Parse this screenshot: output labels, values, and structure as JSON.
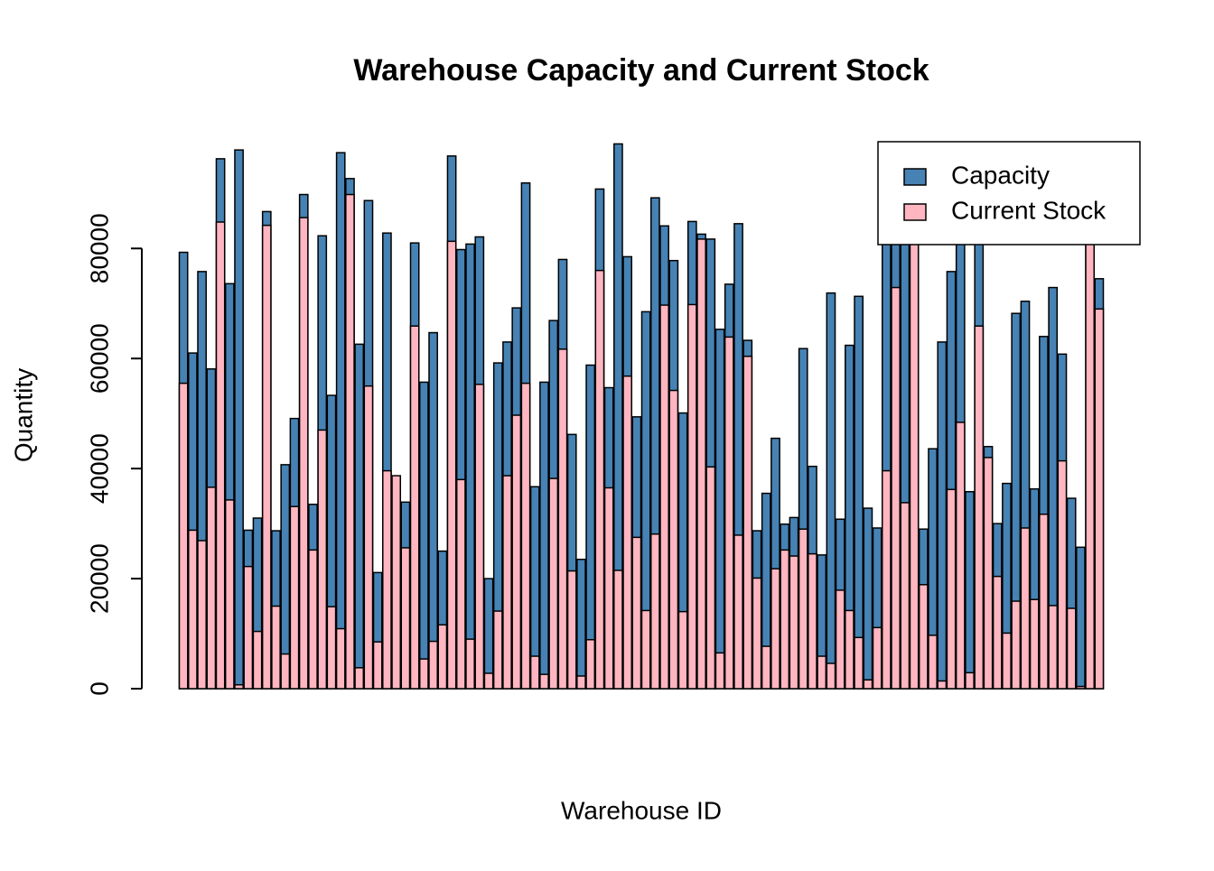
{
  "chart_data": {
    "type": "overlay-bar",
    "title": "Warehouse Capacity and Current Stock",
    "x_label": "Warehouse ID",
    "y_label": "Quantity",
    "ylim": [
      0,
      99400
    ],
    "yticks": [
      0,
      20000,
      40000,
      60000,
      80000
    ],
    "legend": "topright",
    "series": [
      {
        "name": "Capacity",
        "color": "#4682b4",
        "values": [
          79300,
          61000,
          75800,
          58100,
          96300,
          73600,
          97900,
          28800,
          31000,
          86700,
          28700,
          40700,
          49100,
          89800,
          33500,
          82300,
          53300,
          97400,
          92700,
          62600,
          88700,
          21100,
          82800,
          38500,
          33900,
          81000,
          55700,
          64700,
          25000,
          96800,
          79800,
          80800,
          82100,
          20000,
          59200,
          63000,
          69200,
          91900,
          36700,
          55700,
          66900,
          78000,
          46200,
          23500,
          58800,
          90800,
          54700,
          99000,
          78500,
          49400,
          68500,
          89200,
          84100,
          77800,
          50100,
          84900,
          82600,
          81700,
          65300,
          73500,
          84500,
          63300,
          28700,
          35500,
          45500,
          29900,
          31100,
          61800,
          40400,
          24300,
          71900,
          30800,
          62400,
          71300,
          32800,
          29200,
          90000,
          88000,
          86000,
          90000,
          29000,
          43600,
          63000,
          75800,
          88000,
          35800,
          86000,
          44000,
          30000,
          37300,
          68200,
          70400,
          36300,
          64000,
          72900,
          60800,
          34600,
          25700,
          85000,
          74500
        ]
      },
      {
        "name": "Current Stock",
        "color": "#ffb6c1",
        "values": [
          55500,
          28800,
          26900,
          36600,
          84800,
          34300,
          700,
          22200,
          10400,
          84200,
          15000,
          6300,
          33100,
          85600,
          25200,
          47000,
          14900,
          10900,
          89800,
          3800,
          55000,
          8500,
          39600,
          38700,
          25600,
          65900,
          5400,
          8600,
          11600,
          81300,
          38000,
          9000,
          55300,
          2800,
          14100,
          38700,
          49700,
          55500,
          5900,
          2600,
          38200,
          61700,
          21400,
          2300,
          8900,
          76000,
          36500,
          21500,
          56800,
          27500,
          14200,
          28100,
          69700,
          54200,
          14000,
          69800,
          81700,
          40300,
          6500,
          63900,
          27900,
          60400,
          20100,
          7700,
          21800,
          25200,
          24100,
          29000,
          24500,
          5900,
          4600,
          17900,
          14200,
          9300,
          1600,
          11100,
          39600,
          72900,
          33800,
          85000,
          18900,
          9700,
          1400,
          36200,
          48400,
          2900,
          65900,
          42000,
          20400,
          10100,
          15900,
          29200,
          16200,
          31700,
          15100,
          41400,
          14600,
          400,
          88000,
          69000
        ]
      }
    ]
  }
}
